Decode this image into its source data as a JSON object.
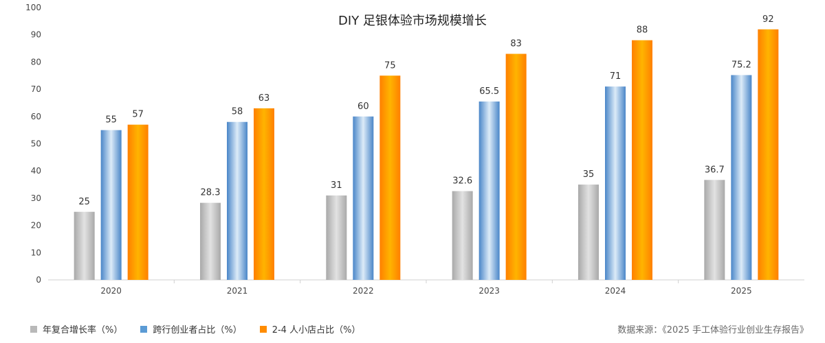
{
  "chart_data": {
    "type": "bar",
    "title": "DIY 足银体验市场规模增长",
    "categories": [
      "2020",
      "2021",
      "2022",
      "2023",
      "2024",
      "2025"
    ],
    "series": [
      {
        "name": "年复合增长率（%）",
        "values": [
          25,
          28.3,
          31,
          32.6,
          35,
          36.7
        ],
        "color": "#b9b9b9"
      },
      {
        "name": "跨行创业者占比（%）",
        "values": [
          55,
          58,
          60,
          65.5,
          71,
          75.2
        ],
        "color": "#5b9bd5"
      },
      {
        "name": "2-4 人小店占比（%）",
        "values": [
          57,
          63,
          75,
          83,
          88,
          92
        ],
        "color": "#ff8c00"
      }
    ],
    "ylim": [
      0,
      100
    ],
    "yticks": [
      0,
      10,
      20,
      30,
      40,
      50,
      60,
      70,
      80,
      90,
      100
    ],
    "grid": false,
    "legend_position": "bottom-left"
  },
  "source_note": "数据来源：《2025 手工体验行业创业生存报告》"
}
